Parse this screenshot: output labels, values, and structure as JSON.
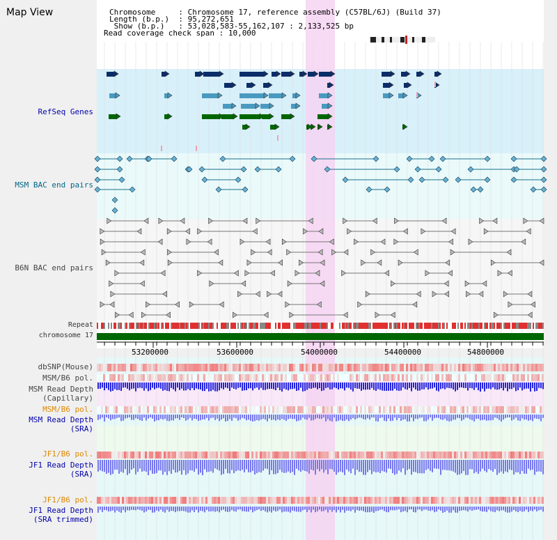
{
  "page": {
    "title": "Map View"
  },
  "info": {
    "lines": [
      {
        "key": "Chromosome    ",
        "value": " : Chromosome 17, reference assembly (C57BL/6J) (Build 37)"
      },
      {
        "key": "Length (b.p.) ",
        "value": " : 95,272,651"
      },
      {
        "key": " Show (b.p.)  ",
        "value": " : 53,028,583-55,162,107 : 2,133,525 bp"
      },
      {
        "key": "Read coverage check span",
        "value": " : 10,000"
      }
    ]
  },
  "tracks": {
    "refseq": "RefSeq Genes",
    "msm_bac": "MSM BAC end pairs",
    "b6n_bac": "B6N BAC end pairs",
    "repeat": "Repeat",
    "chromosome": "chromosome 17",
    "dbsnp": "dbSNP(Mouse)",
    "msm_pol1": "MSM/B6 pol.",
    "msm_depth_cap": [
      "MSM Read Depth",
      "(Capillary)"
    ],
    "msm_pol2": "MSM/B6 pol.",
    "msm_depth_sra": [
      "MSM Read Depth",
      "(SRA)"
    ],
    "jf1_pol1": "JF1/B6 pol.",
    "jf1_depth_sra": [
      "JF1 Read Depth",
      "(SRA)"
    ],
    "jf1_pol2": "JF1/B6 pol.",
    "jf1_depth_trim": [
      "JF1 Read Depth",
      "(SRA trimmed)"
    ]
  },
  "axis": {
    "ticks": [
      "53200000",
      "53600000",
      "54000000",
      "54400000",
      "54800000"
    ]
  },
  "colors": {
    "refseq_bg": "#d8f0fa",
    "bac_bg": "#eafafa",
    "highlight": "#f6d4f2",
    "chromosome": "#006600",
    "gene_dark": "#0a2d6a",
    "gene_light": "#4a9ac0",
    "gene_green": "#006600",
    "bac_line": "#1a6e8a",
    "b6n_line": "#777777",
    "snp": "#e03030",
    "depth_blue": "#2222dd",
    "depth_light": "#7777ee"
  }
}
